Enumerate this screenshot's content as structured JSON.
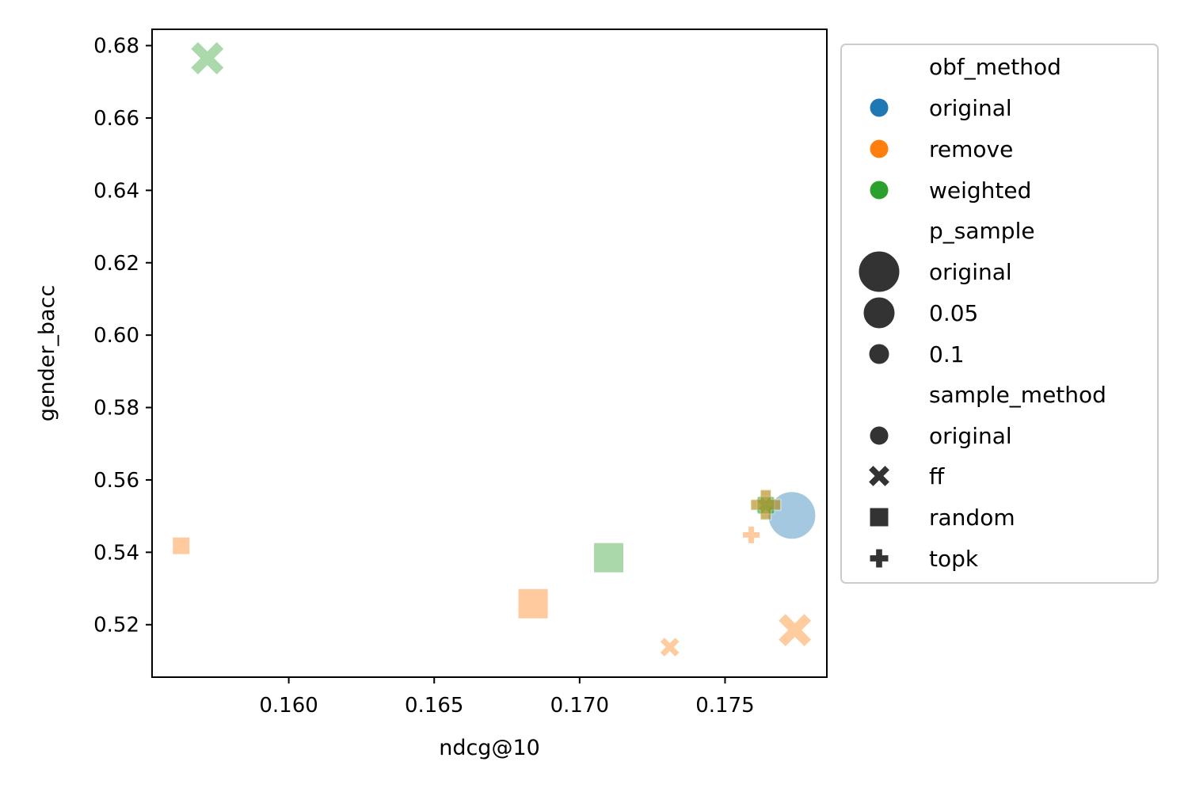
{
  "chart_data": {
    "type": "scatter",
    "xlabel": "ndcg@10",
    "ylabel": "gender_bacc",
    "xlim": [
      0.1553,
      0.1785
    ],
    "ylim": [
      0.5055,
      0.6845
    ],
    "xticks": [
      0.16,
      0.165,
      0.17,
      0.175
    ],
    "xtick_labels": [
      "0.160",
      "0.165",
      "0.170",
      "0.175"
    ],
    "yticks": [
      0.52,
      0.54,
      0.56,
      0.58,
      0.6,
      0.62,
      0.64,
      0.66,
      0.68
    ],
    "ytick_labels": [
      "0.52",
      "0.54",
      "0.56",
      "0.58",
      "0.60",
      "0.62",
      "0.64",
      "0.66",
      "0.68"
    ],
    "grid": false,
    "legend_position": "outside-right",
    "colors": {
      "original": "#1f77b4",
      "remove": "#ff7f0e",
      "weighted": "#2ca02c",
      "neutral": "#333333"
    },
    "points": [
      {
        "x": 0.1773,
        "y": 0.5502,
        "obf_method": "original",
        "p_sample": "original",
        "sample_method": "original"
      },
      {
        "x": 0.1572,
        "y": 0.6765,
        "obf_method": "weighted",
        "p_sample": "0.05",
        "sample_method": "ff"
      },
      {
        "x": 0.171,
        "y": 0.5385,
        "obf_method": "weighted",
        "p_sample": "0.05",
        "sample_method": "random"
      },
      {
        "x": 0.1764,
        "y": 0.553,
        "obf_method": "weighted",
        "p_sample": "0.05",
        "sample_method": "topk"
      },
      {
        "x": 0.1764,
        "y": 0.553,
        "obf_method": "weighted",
        "p_sample": "0.1",
        "sample_method": "ff"
      },
      {
        "x": 0.1764,
        "y": 0.553,
        "obf_method": "weighted",
        "p_sample": "0.1",
        "sample_method": "random"
      },
      {
        "x": 0.1764,
        "y": 0.5532,
        "obf_method": "remove",
        "p_sample": "0.05",
        "sample_method": "topk"
      },
      {
        "x": 0.1774,
        "y": 0.5185,
        "obf_method": "remove",
        "p_sample": "0.05",
        "sample_method": "ff"
      },
      {
        "x": 0.1684,
        "y": 0.5258,
        "obf_method": "remove",
        "p_sample": "0.05",
        "sample_method": "random"
      },
      {
        "x": 0.1759,
        "y": 0.5448,
        "obf_method": "remove",
        "p_sample": "0.1",
        "sample_method": "topk"
      },
      {
        "x": 0.1731,
        "y": 0.5138,
        "obf_method": "remove",
        "p_sample": "0.1",
        "sample_method": "ff"
      },
      {
        "x": 0.1563,
        "y": 0.5418,
        "obf_method": "remove",
        "p_sample": "0.1",
        "sample_method": "random"
      }
    ],
    "legend": [
      {
        "kind": "header",
        "label": "obf_method"
      },
      {
        "kind": "hue",
        "label": "original",
        "color_key": "original"
      },
      {
        "kind": "hue",
        "label": "remove",
        "color_key": "remove"
      },
      {
        "kind": "hue",
        "label": "weighted",
        "color_key": "weighted"
      },
      {
        "kind": "header",
        "label": "p_sample"
      },
      {
        "kind": "size",
        "label": "original",
        "size_key": "original"
      },
      {
        "kind": "size",
        "label": "0.05",
        "size_key": "0.05"
      },
      {
        "kind": "size",
        "label": "0.1",
        "size_key": "0.1"
      },
      {
        "kind": "header",
        "label": "sample_method"
      },
      {
        "kind": "style",
        "label": "original",
        "marker": "original"
      },
      {
        "kind": "style",
        "label": "ff",
        "marker": "ff"
      },
      {
        "kind": "style",
        "label": "random",
        "marker": "random"
      },
      {
        "kind": "style",
        "label": "topk",
        "marker": "topk"
      }
    ]
  }
}
